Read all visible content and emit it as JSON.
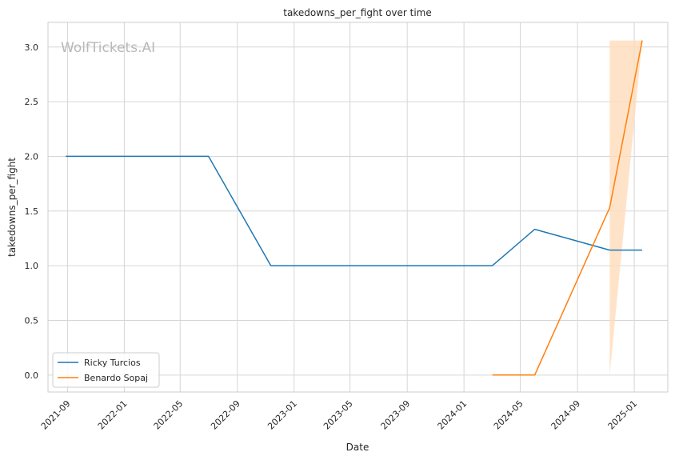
{
  "chart_data": {
    "type": "line",
    "title": "takedowns_per_fight over time",
    "xlabel": "Date",
    "ylabel": "takedowns_per_fight",
    "watermark": "WolfTickets.AI",
    "x_ticks": [
      "2021-09",
      "2022-01",
      "2022-05",
      "2022-09",
      "2023-01",
      "2023-05",
      "2023-09",
      "2024-01",
      "2024-05",
      "2024-09",
      "2025-01"
    ],
    "y_ticks": [
      "0.0",
      "0.5",
      "1.0",
      "1.5",
      "2.0",
      "2.5",
      "3.0"
    ],
    "xlim": [
      "2021-07-21",
      "2025-03-14"
    ],
    "ylim": [
      -0.155,
      3.225
    ],
    "grid": true,
    "legend_position": "bottom-left",
    "series": [
      {
        "name": "Ricky Turcios",
        "color": "#1f77b4",
        "points": [
          {
            "x": "2021-08-28",
            "y": 2.0
          },
          {
            "x": "2022-07-01",
            "y": 2.0
          },
          {
            "x": "2022-11-12",
            "y": 1.0
          },
          {
            "x": "2024-03-02",
            "y": 1.0
          },
          {
            "x": "2024-06-01",
            "y": 1.333
          },
          {
            "x": "2024-11-09",
            "y": 1.143
          },
          {
            "x": "2025-01-18",
            "y": 1.143
          }
        ]
      },
      {
        "name": "Benardo Sopaj",
        "color": "#ff7f0e",
        "band_color": "#ffdcbc",
        "points": [
          {
            "x": "2024-03-02",
            "y": 0.0
          },
          {
            "x": "2024-06-01",
            "y": 0.0
          },
          {
            "x": "2024-11-09",
            "y": 1.53
          },
          {
            "x": "2025-01-18",
            "y": 3.06
          }
        ],
        "band": [
          {
            "x": "2024-11-09",
            "low": 0.0,
            "high": 3.06
          },
          {
            "x": "2025-01-18",
            "low": 3.06,
            "high": 3.06
          }
        ]
      }
    ]
  }
}
